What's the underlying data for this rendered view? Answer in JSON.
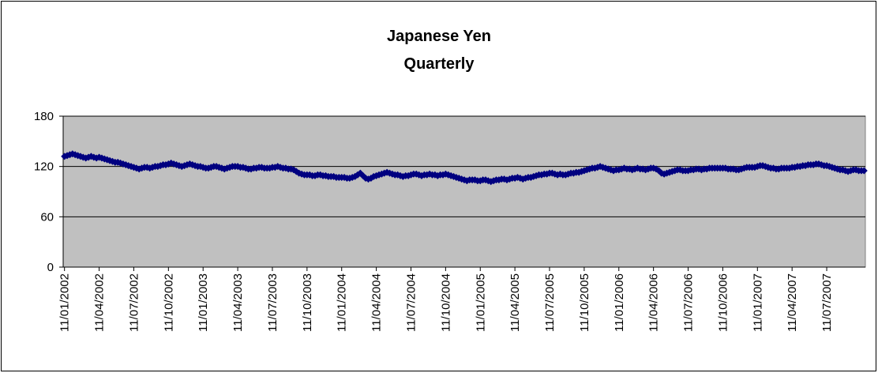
{
  "chart_data": {
    "type": "line",
    "title": "Japanese Yen",
    "subtitle": "Quarterly",
    "categories": [
      "11/01/2002",
      null,
      null,
      null,
      null,
      null,
      null,
      null,
      null,
      null,
      null,
      null,
      null,
      "11/04/2002",
      null,
      null,
      null,
      null,
      null,
      null,
      null,
      null,
      null,
      null,
      null,
      null,
      "11/07/2002",
      null,
      null,
      null,
      null,
      null,
      null,
      null,
      null,
      null,
      null,
      null,
      null,
      "11/10/2002",
      null,
      null,
      null,
      null,
      null,
      null,
      null,
      null,
      null,
      null,
      null,
      null,
      "11/01/2003",
      null,
      null,
      null,
      null,
      null,
      null,
      null,
      null,
      null,
      null,
      null,
      null,
      "11/04/2003",
      null,
      null,
      null,
      null,
      null,
      null,
      null,
      null,
      null,
      null,
      null,
      null,
      "11/07/2003",
      null,
      null,
      null,
      null,
      null,
      null,
      null,
      null,
      null,
      null,
      null,
      null,
      "11/10/2003",
      null,
      null,
      null,
      null,
      null,
      null,
      null,
      null,
      null,
      null,
      null,
      null,
      "11/01/2004",
      null,
      null,
      null,
      null,
      null,
      null,
      null,
      null,
      null,
      null,
      null,
      null,
      "11/04/2004",
      null,
      null,
      null,
      null,
      null,
      null,
      null,
      null,
      null,
      null,
      null,
      null,
      "11/07/2004",
      null,
      null,
      null,
      null,
      null,
      null,
      null,
      null,
      null,
      null,
      null,
      null,
      "11/10/2004",
      null,
      null,
      null,
      null,
      null,
      null,
      null,
      null,
      null,
      null,
      null,
      null,
      "11/01/2005",
      null,
      null,
      null,
      null,
      null,
      null,
      null,
      null,
      null,
      null,
      null,
      null,
      "11/04/2005",
      null,
      null,
      null,
      null,
      null,
      null,
      null,
      null,
      null,
      null,
      null,
      null,
      "11/07/2005",
      null,
      null,
      null,
      null,
      null,
      null,
      null,
      null,
      null,
      null,
      null,
      null,
      "11/10/2005",
      null,
      null,
      null,
      null,
      null,
      null,
      null,
      null,
      null,
      null,
      null,
      null,
      "11/01/2006",
      null,
      null,
      null,
      null,
      null,
      null,
      null,
      null,
      null,
      null,
      null,
      null,
      "11/04/2006",
      null,
      null,
      null,
      null,
      null,
      null,
      null,
      null,
      null,
      null,
      null,
      null,
      "11/07/2006",
      null,
      null,
      null,
      null,
      null,
      null,
      null,
      null,
      null,
      null,
      null,
      null,
      "11/10/2006",
      null,
      null,
      null,
      null,
      null,
      null,
      null,
      null,
      null,
      null,
      null,
      null,
      "11/01/2007",
      null,
      null,
      null,
      null,
      null,
      null,
      null,
      null,
      null,
      null,
      null,
      null,
      "11/04/2007",
      null,
      null,
      null,
      null,
      null,
      null,
      null,
      null,
      null,
      null,
      null,
      null,
      "11/07/2007",
      null,
      null,
      null,
      null,
      null,
      null,
      null,
      null,
      null,
      null,
      null,
      null,
      null,
      null
    ],
    "series": [
      {
        "name": "Japanese Yen",
        "color": "#000080",
        "values": [
          132,
          133,
          134,
          135,
          134,
          133,
          132,
          131,
          130,
          131,
          132,
          131,
          130,
          131,
          130,
          129,
          128,
          127,
          126,
          125,
          125,
          124,
          123,
          122,
          121,
          120,
          119,
          118,
          117,
          118,
          119,
          119,
          118,
          119,
          120,
          120,
          121,
          122,
          122,
          123,
          124,
          123,
          122,
          121,
          120,
          121,
          122,
          123,
          122,
          121,
          120,
          120,
          119,
          118,
          118,
          119,
          120,
          120,
          119,
          118,
          117,
          118,
          119,
          120,
          120,
          120,
          119,
          119,
          118,
          117,
          117,
          118,
          118,
          119,
          119,
          118,
          118,
          118,
          119,
          119,
          120,
          119,
          118,
          118,
          117,
          117,
          116,
          114,
          112,
          111,
          110,
          110,
          110,
          109,
          109,
          110,
          110,
          109,
          109,
          108,
          108,
          108,
          107,
          107,
          107,
          107,
          106,
          106,
          107,
          108,
          110,
          112,
          109,
          106,
          105,
          106,
          108,
          109,
          110,
          111,
          112,
          113,
          112,
          111,
          110,
          110,
          109,
          108,
          109,
          109,
          110,
          111,
          111,
          110,
          109,
          110,
          110,
          111,
          110,
          110,
          109,
          110,
          110,
          111,
          110,
          109,
          108,
          107,
          106,
          105,
          104,
          103,
          104,
          104,
          104,
          103,
          103,
          104,
          104,
          103,
          102,
          103,
          104,
          104,
          105,
          105,
          104,
          105,
          106,
          106,
          107,
          106,
          105,
          106,
          107,
          107,
          108,
          109,
          110,
          110,
          111,
          111,
          112,
          112,
          111,
          110,
          111,
          110,
          110,
          111,
          112,
          112,
          113,
          113,
          114,
          115,
          116,
          117,
          118,
          118,
          119,
          120,
          119,
          118,
          117,
          116,
          115,
          116,
          116,
          117,
          118,
          117,
          117,
          116,
          117,
          118,
          117,
          117,
          116,
          117,
          118,
          118,
          117,
          115,
          112,
          111,
          112,
          113,
          114,
          115,
          116,
          116,
          115,
          115,
          115,
          116,
          116,
          117,
          117,
          116,
          117,
          117,
          118,
          118,
          118,
          118,
          118,
          118,
          118,
          117,
          117,
          117,
          116,
          116,
          117,
          118,
          119,
          119,
          119,
          119,
          120,
          121,
          121,
          120,
          119,
          118,
          118,
          117,
          117,
          118,
          118,
          118,
          118,
          119,
          119,
          120,
          120,
          121,
          121,
          122,
          122,
          122,
          123,
          123,
          122,
          121,
          121,
          120,
          119,
          118,
          117,
          116,
          116,
          115,
          114,
          115,
          116,
          116,
          115,
          115,
          115
        ]
      }
    ],
    "ylim": [
      0,
      180
    ],
    "yticks": [
      0,
      60,
      120,
      180
    ],
    "grid": true,
    "plot_background": "#c0c0c0"
  }
}
